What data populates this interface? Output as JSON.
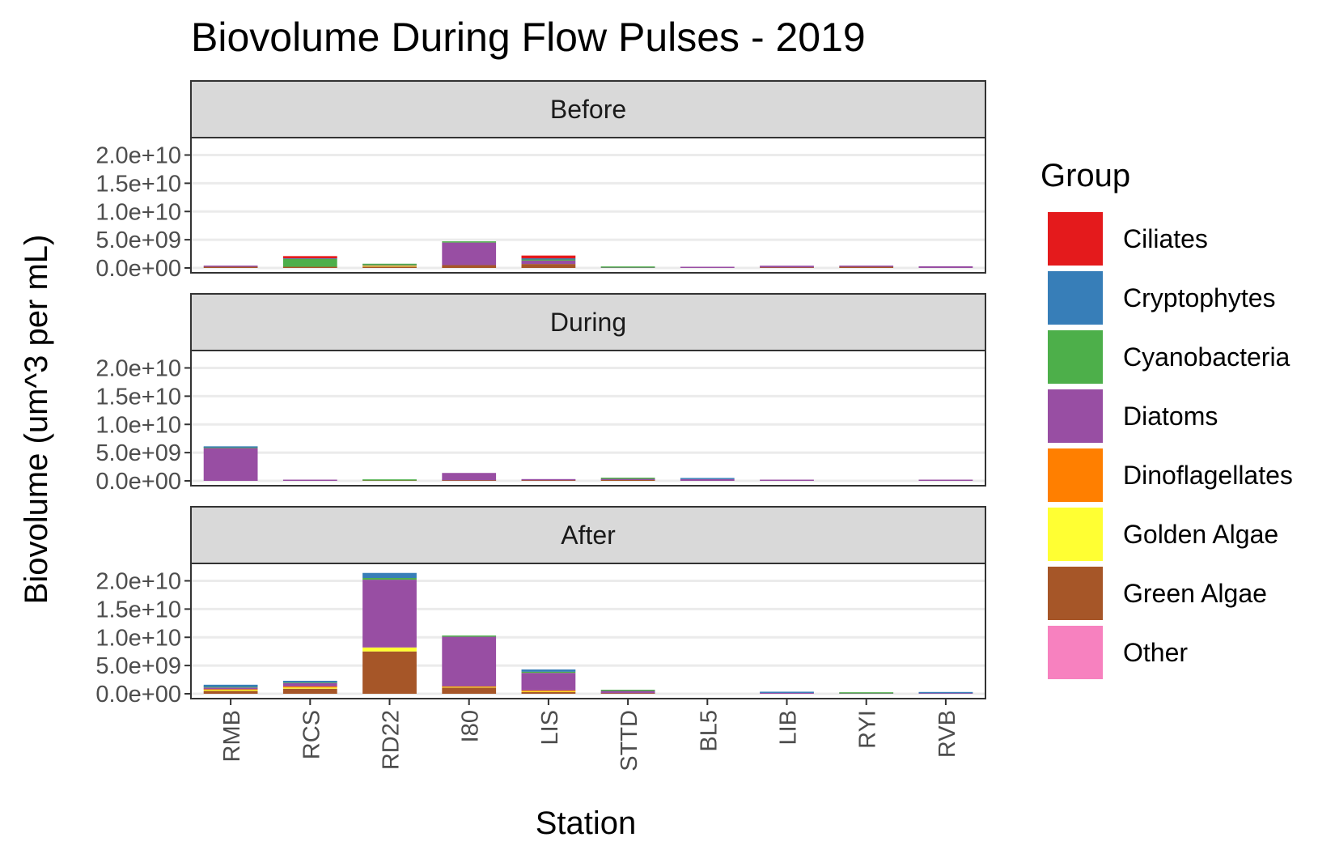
{
  "chart_data": {
    "type": "bar",
    "stacked": true,
    "title": "Biovolume During Flow Pulses - 2019",
    "xlabel": "Station",
    "ylabel": "Biovolume (um^3 per mL)",
    "ylim": [
      0,
      22000000000
    ],
    "y_ticks": [
      "0.0e+00",
      "5.0e+09",
      "1.0e+10",
      "1.5e+10",
      "2.0e+10"
    ],
    "y_tick_values": [
      0,
      5000000000,
      10000000000,
      15000000000,
      20000000000
    ],
    "grid": "horizontal major",
    "legend_position": "right",
    "legend_title": "Group",
    "categories": [
      "RMB",
      "RCS",
      "RD22",
      "I80",
      "LIS",
      "STTD",
      "BL5",
      "LIB",
      "RYI",
      "RVB"
    ],
    "groups": [
      {
        "name": "Ciliates",
        "color": "#E41A1C"
      },
      {
        "name": "Cryptophytes",
        "color": "#377EB8"
      },
      {
        "name": "Cyanobacteria",
        "color": "#4DAF4A"
      },
      {
        "name": "Diatoms",
        "color": "#984EA3"
      },
      {
        "name": "Dinoflagellates",
        "color": "#FF7F00"
      },
      {
        "name": "Golden Algae",
        "color": "#FFFF33"
      },
      {
        "name": "Green Algae",
        "color": "#A65628"
      },
      {
        "name": "Other",
        "color": "#F781BF"
      }
    ],
    "stack_order_bottom_to_top": [
      "Other",
      "Green Algae",
      "Golden Algae",
      "Dinoflagellates",
      "Diatoms",
      "Cyanobacteria",
      "Cryptophytes",
      "Ciliates"
    ],
    "panels": [
      {
        "label": "Before",
        "values": {
          "RMB": {
            "Green Algae": 200000000,
            "Diatoms": 100000000
          },
          "RCS": {
            "Green Algae": 200000000,
            "Ciliates": 400000000,
            "Cyanobacteria": 1400000000,
            "Cryptophytes": 100000000
          },
          "RD22": {
            "Golden Algae": 150000000,
            "Green Algae": 250000000,
            "Diatoms": 100000000,
            "Cyanobacteria": 250000000
          },
          "I80": {
            "Green Algae": 500000000,
            "Diatoms": 4000000000,
            "Cyanobacteria": 100000000
          },
          "LIS": {
            "Green Algae": 700000000,
            "Ciliates": 500000000,
            "Diatoms": 600000000,
            "Cyanobacteria": 200000000,
            "Cryptophytes": 200000000
          },
          "STTD": {
            "Diatoms": 50000000,
            "Cyanobacteria": 150000000
          },
          "BL5": {
            "Diatoms": 100000000
          },
          "LIB": {
            "Green Algae": 100000000,
            "Diatoms": 300000000
          },
          "RYI": {
            "Green Algae": 200000000,
            "Diatoms": 50000000
          },
          "RVB": {
            "Diatoms": 300000000
          }
        }
      },
      {
        "label": "During",
        "values": {
          "RMB": {
            "Diatoms": 5800000000,
            "Cyanobacteria": 100000000,
            "Cryptophytes": 100000000
          },
          "RCS": {
            "Diatoms": 100000000
          },
          "RD22": {
            "Green Algae": 50000000,
            "Cyanobacteria": 50000000
          },
          "I80": {
            "Green Algae": 100000000,
            "Diatoms": 1300000000
          },
          "LIS": {
            "Green Algae": 100000000,
            "Diatoms": 200000000
          },
          "STTD": {
            "Green Algae": 150000000,
            "Diatoms": 200000000,
            "Cyanobacteria": 150000000
          },
          "BL5": {
            "Diatoms": 300000000,
            "Cryptophytes": 50000000
          },
          "LIB": {
            "Diatoms": 100000000
          },
          "RYI": {},
          "RVB": {
            "Diatoms": 200000000
          }
        }
      },
      {
        "label": "After",
        "values": {
          "RMB": {
            "Green Algae": 500000000,
            "Golden Algae": 200000000,
            "Dinoflagellates": 100000000,
            "Diatoms": 300000000,
            "Cyanobacteria": 100000000,
            "Cryptophytes": 400000000
          },
          "RCS": {
            "Green Algae": 900000000,
            "Golden Algae": 200000000,
            "Dinoflagellates": 200000000,
            "Diatoms": 600000000,
            "Cyanobacteria": 100000000,
            "Cryptophytes": 300000000
          },
          "RD22": {
            "Green Algae": 7500000000,
            "Golden Algae": 700000000,
            "Diatoms": 12000000000,
            "Cyanobacteria": 300000000,
            "Cryptophytes": 900000000
          },
          "I80": {
            "Green Algae": 1100000000,
            "Dinoflagellates": 100000000,
            "Golden Algae": 100000000,
            "Diatoms": 8800000000,
            "Cyanobacteria": 150000000
          },
          "LIS": {
            "Green Algae": 300000000,
            "Dinoflagellates": 200000000,
            "Golden Algae": 100000000,
            "Diatoms": 3100000000,
            "Cyanobacteria": 200000000,
            "Cryptophytes": 400000000
          },
          "STTD": {
            "Green Algae": 100000000,
            "Diatoms": 400000000,
            "Cyanobacteria": 50000000
          },
          "BL5": {},
          "LIB": {
            "Diatoms": 150000000,
            "Cryptophytes": 200000000
          },
          "RYI": {
            "Diatoms": 50000000,
            "Cyanobacteria": 80000000
          },
          "RVB": {
            "Diatoms": 100000000,
            "Cryptophytes": 150000000
          }
        }
      }
    ]
  }
}
